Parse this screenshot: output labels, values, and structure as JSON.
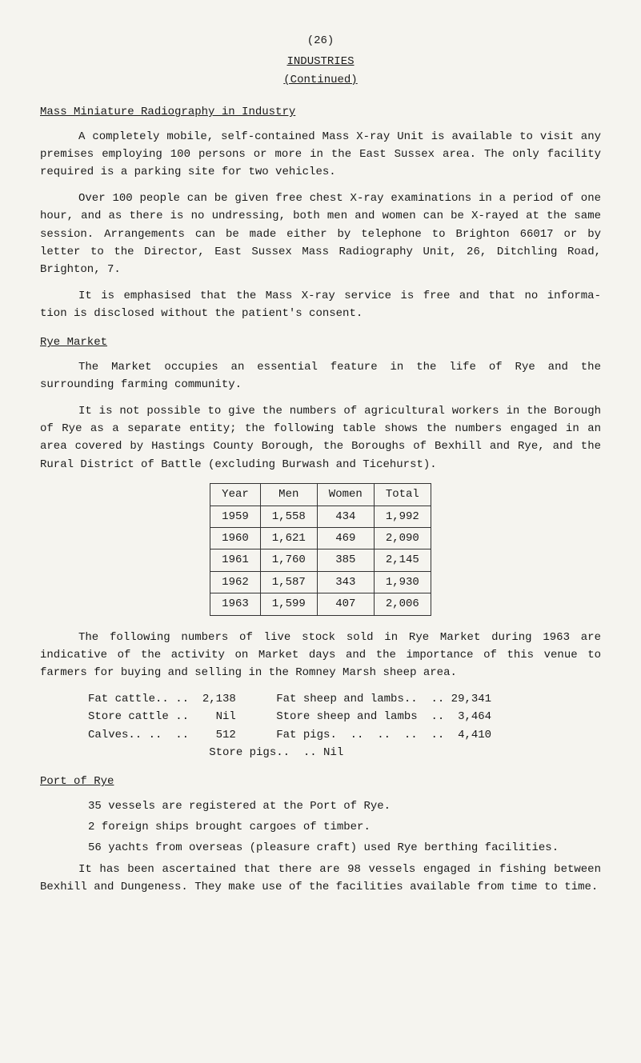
{
  "page_number_label": "(26)",
  "doc_title": "INDUSTRIES",
  "doc_subtitle": "(Continued)",
  "sections": {
    "mass_radiography": {
      "heading": "Mass Miniature Radiography in Industry",
      "p1": "A completely mobile, self-contained Mass X-ray Unit is available to visit any premises employing 100 persons or more in the East Sussex area. The only facility required is a parking site for two vehicles.",
      "p2": "Over 100 people can be given free chest X-ray examinations in a period of one hour, and as there is no undressing, both men and women can be X-rayed at the same session. Arrangements can be made either by telephone to Brighton 66017 or by letter to the Director, East Sussex Mass Radiography Unit, 26, Ditchling Road, Brighton, 7.",
      "p3": "It is emphasised that the Mass X-ray service is free and that no informa- tion is disclosed without the patient's consent."
    },
    "rye_market": {
      "heading": "Rye Market",
      "p1": "The Market occupies an essential feature in the life of Rye and the surrounding farming community.",
      "p2": "It is not possible to give the numbers of agricultural workers in the Borough of Rye as a separate entity; the following table shows the numbers engaged in an area covered by Hastings County Borough, the Boroughs of Bexhill and Rye, and the Rural District of Battle (excluding Burwash and Ticehurst).",
      "table": {
        "headers": [
          "Year",
          "Men",
          "Women",
          "Total"
        ],
        "rows": [
          [
            "1959",
            "1,558",
            "434",
            "1,992"
          ],
          [
            "1960",
            "1,621",
            "469",
            "2,090"
          ],
          [
            "1961",
            "1,760",
            "385",
            "2,145"
          ],
          [
            "1962",
            "1,587",
            "343",
            "1,930"
          ],
          [
            "1963",
            "1,599",
            "407",
            "2,006"
          ]
        ]
      },
      "p3": "The following numbers of live stock sold in Rye Market during 1963 are indicative of the activity on Market days and the importance of this venue to farmers for buying and selling in the Romney Marsh sheep area.",
      "livestock": [
        "Fat cattle.. ..  2,138      Fat sheep and lambs..  .. 29,341",
        "Store cattle ..    Nil      Store sheep and lambs  ..  3,464",
        "Calves.. ..  ..    512      Fat pigs.  ..  ..  ..  ..  4,410",
        "                  Store pigs..  .. Nil"
      ]
    },
    "port_of_rye": {
      "heading": "Port of Rye",
      "items": [
        "35 vessels are registered at the Port of Rye.",
        "2 foreign ships brought cargoes of timber.",
        "56 yachts from overseas (pleasure craft) used Rye berthing facilities."
      ],
      "p1": "It has been ascertained that there are 98 vessels engaged in fishing between Bexhill and Dungeness. They make use of the facilities available from time to time."
    }
  }
}
